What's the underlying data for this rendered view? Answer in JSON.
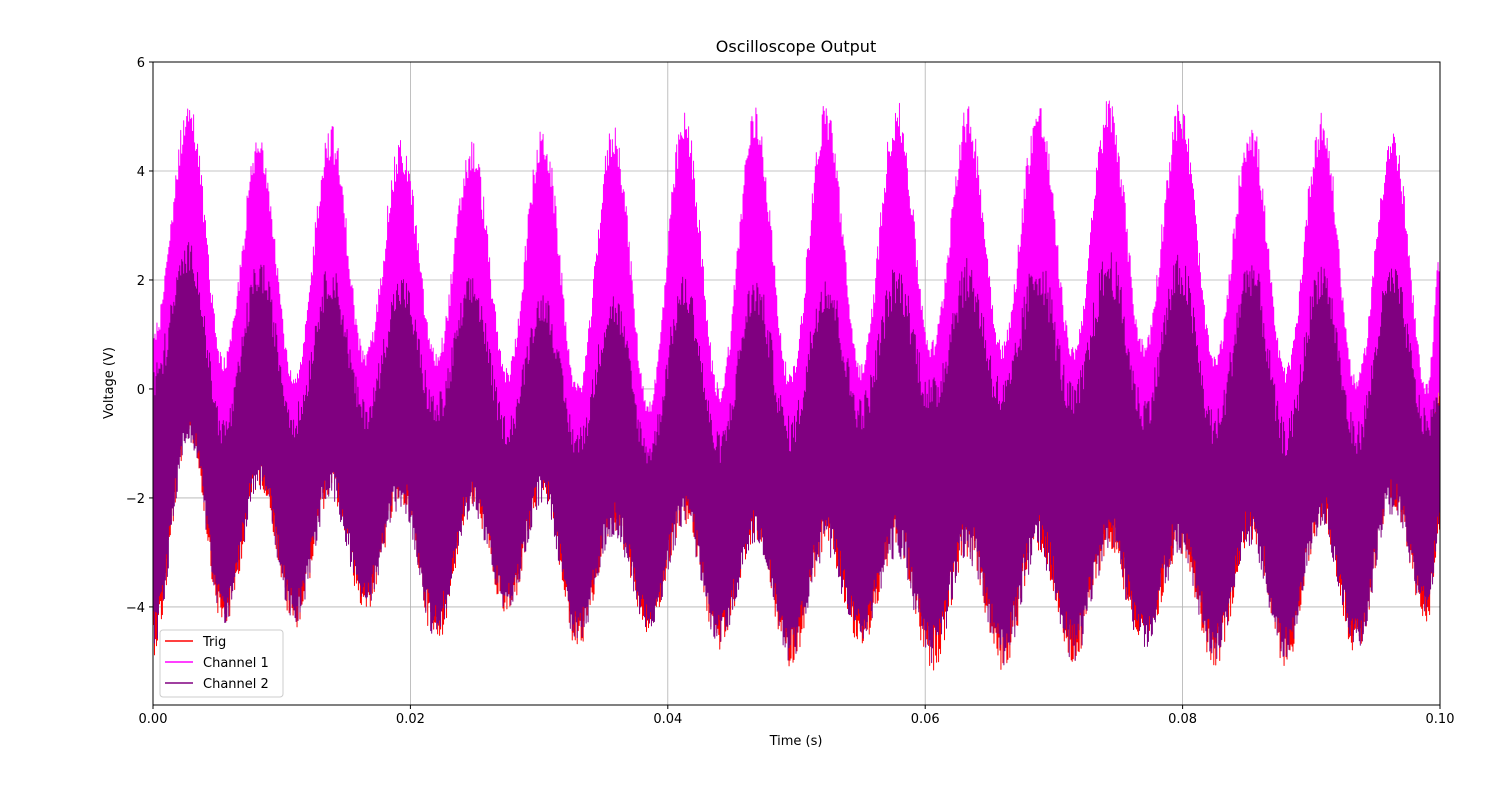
{
  "chart_data": {
    "type": "line",
    "title": "Oscilloscope Output",
    "xlabel": "Time (s)",
    "ylabel": "Voltage (V)",
    "xlim": [
      0.0,
      0.1
    ],
    "ylim": [
      -5.8,
      6.0
    ],
    "xticks": [
      0.0,
      0.02,
      0.04,
      0.06,
      0.08,
      0.1
    ],
    "xtick_labels": [
      "0.00",
      "0.02",
      "0.04",
      "0.06",
      "0.08",
      "0.10"
    ],
    "yticks": [
      -4,
      -2,
      0,
      2,
      4,
      6
    ],
    "ytick_labels": [
      "−4",
      "−2",
      "0",
      "2",
      "4",
      "6"
    ],
    "grid": true,
    "legend_position": "lower-left",
    "series": [
      {
        "name": "Trig",
        "color": "#ff0000",
        "x": [
          0.0,
          0.0028,
          0.0055,
          0.0083,
          0.011,
          0.0138,
          0.0165,
          0.0193,
          0.022,
          0.0248,
          0.0275,
          0.0303,
          0.033,
          0.0358,
          0.0385,
          0.0413,
          0.044,
          0.0468,
          0.0495,
          0.0523,
          0.055,
          0.0578,
          0.0605,
          0.0633,
          0.066,
          0.0688,
          0.0715,
          0.0743,
          0.077,
          0.0798,
          0.0825,
          0.0853,
          0.088,
          0.0908,
          0.0935,
          0.0963,
          0.099,
          0.1
        ],
        "upper": [
          0.6,
          2.8,
          -0.4,
          2.5,
          -0.2,
          2.4,
          -0.1,
          2.2,
          0.0,
          2.2,
          -0.4,
          1.9,
          -0.6,
          1.9,
          -0.8,
          2.2,
          -0.7,
          2.2,
          -0.4,
          2.3,
          0.0,
          2.4,
          0.3,
          2.5,
          0.3,
          2.6,
          0.2,
          2.7,
          0.0,
          2.6,
          -0.3,
          2.6,
          -0.5,
          2.5,
          -0.5,
          2.4,
          -0.3,
          0.1
        ],
        "lower": [
          -4.9,
          -0.9,
          -4.4,
          -1.8,
          -4.4,
          -2.0,
          -4.1,
          -2.1,
          -4.7,
          -2.2,
          -4.2,
          -2.0,
          -4.8,
          -2.6,
          -4.5,
          -2.5,
          -4.8,
          -2.8,
          -5.1,
          -3.0,
          -4.8,
          -3.0,
          -5.2,
          -3.1,
          -5.2,
          -3.0,
          -5.1,
          -3.0,
          -4.9,
          -3.0,
          -5.1,
          -2.8,
          -5.1,
          -2.5,
          -4.9,
          -2.2,
          -4.3,
          -2.7
        ]
      },
      {
        "name": "Channel 1",
        "color": "#ff00ff",
        "x": [
          0.0,
          0.0028,
          0.0055,
          0.0083,
          0.011,
          0.0138,
          0.0165,
          0.0193,
          0.022,
          0.0248,
          0.0275,
          0.0303,
          0.033,
          0.0358,
          0.0385,
          0.0413,
          0.044,
          0.0468,
          0.0495,
          0.0523,
          0.055,
          0.0578,
          0.0605,
          0.0633,
          0.066,
          0.0688,
          0.0715,
          0.0743,
          0.077,
          0.0798,
          0.0825,
          0.0853,
          0.088,
          0.0908,
          0.0935,
          0.0963,
          0.099,
          0.1
        ],
        "upper": [
          1.1,
          5.3,
          0.6,
          4.7,
          0.2,
          4.9,
          0.7,
          4.6,
          0.7,
          4.6,
          0.4,
          4.8,
          0.1,
          4.9,
          -0.2,
          5.1,
          0.1,
          5.2,
          0.3,
          5.3,
          0.5,
          5.3,
          0.9,
          5.2,
          0.9,
          5.3,
          0.8,
          5.4,
          0.9,
          5.3,
          0.6,
          5.0,
          0.4,
          5.1,
          0.2,
          4.8,
          0.1,
          2.5
        ],
        "lower": [
          -1.4,
          1.1,
          -1.5,
          0.2,
          -1.4,
          0.2,
          -1.7,
          0.0,
          -1.6,
          -0.1,
          -1.9,
          0.4,
          -1.9,
          0.4,
          -2.1,
          0.1,
          -2.4,
          0.2,
          -1.9,
          0.3,
          -1.9,
          0.4,
          -1.7,
          0.4,
          -1.6,
          0.3,
          -1.3,
          0.2,
          -1.6,
          0.5,
          -1.3,
          0.4,
          -1.6,
          0.4,
          -1.5,
          0.2,
          -1.5,
          -0.3
        ]
      },
      {
        "name": "Channel 2",
        "color": "#800080",
        "x": [
          0.0,
          0.0028,
          0.0055,
          0.0083,
          0.011,
          0.0138,
          0.0165,
          0.0193,
          0.022,
          0.0248,
          0.0275,
          0.0303,
          0.033,
          0.0358,
          0.0385,
          0.0413,
          0.044,
          0.0468,
          0.0495,
          0.0523,
          0.055,
          0.0578,
          0.0605,
          0.0633,
          0.066,
          0.0688,
          0.0715,
          0.0743,
          0.077,
          0.0798,
          0.0825,
          0.0853,
          0.088,
          0.0908,
          0.0935,
          0.0963,
          0.099,
          0.1
        ],
        "upper": [
          0.5,
          2.7,
          -0.5,
          2.4,
          -0.3,
          2.3,
          -0.2,
          2.1,
          -0.1,
          2.1,
          -0.5,
          1.8,
          -0.7,
          1.8,
          -0.9,
          2.1,
          -0.8,
          2.1,
          -0.5,
          2.2,
          -0.1,
          2.3,
          0.2,
          2.4,
          0.2,
          2.5,
          0.1,
          2.6,
          -0.1,
          2.5,
          -0.4,
          2.5,
          -0.6,
          2.4,
          -0.6,
          2.3,
          -0.4,
          0.0
        ],
        "lower": [
          -4.8,
          -1.0,
          -4.3,
          -1.9,
          -4.3,
          -2.1,
          -4.0,
          -2.2,
          -4.6,
          -2.3,
          -4.1,
          -2.1,
          -4.7,
          -2.7,
          -4.4,
          -2.6,
          -4.7,
          -2.9,
          -5.0,
          -3.1,
          -4.7,
          -3.1,
          -5.1,
          -3.2,
          -5.1,
          -3.1,
          -5.0,
          -3.1,
          -4.8,
          -3.1,
          -5.0,
          -2.9,
          -5.0,
          -2.6,
          -4.8,
          -2.3,
          -4.2,
          -2.6
        ]
      }
    ]
  }
}
